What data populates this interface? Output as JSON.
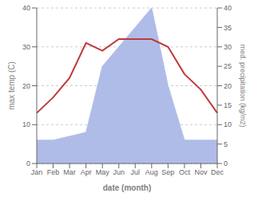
{
  "chart_data": {
    "type": "line",
    "xlabel": "date (month)",
    "ylabel": "max temp (C)",
    "y2label": "med. precipitation (kg/m2)",
    "categories": [
      "Jan",
      "Feb",
      "Mar",
      "Apr",
      "May",
      "Jun",
      "Jul",
      "Aug",
      "Sep",
      "Oct",
      "Nov",
      "Dec"
    ],
    "series": [
      {
        "type": "area",
        "axis": "y2",
        "color": "#b0bce8",
        "values": [
          6,
          6,
          7,
          8,
          25,
          30,
          35,
          40,
          20,
          6,
          6,
          6
        ]
      },
      {
        "type": "line",
        "color": "#c0393b",
        "values": [
          13,
          17,
          22,
          31,
          29,
          32,
          32,
          32,
          30,
          23,
          19,
          13
        ]
      }
    ],
    "ylim": [
      0,
      40
    ],
    "yticks": [
      0,
      10,
      20,
      30,
      40
    ],
    "y2lim": [
      0,
      40
    ],
    "y2ticks": [
      0,
      5,
      10,
      15,
      20,
      25,
      30,
      35,
      40
    ],
    "grid": true
  }
}
